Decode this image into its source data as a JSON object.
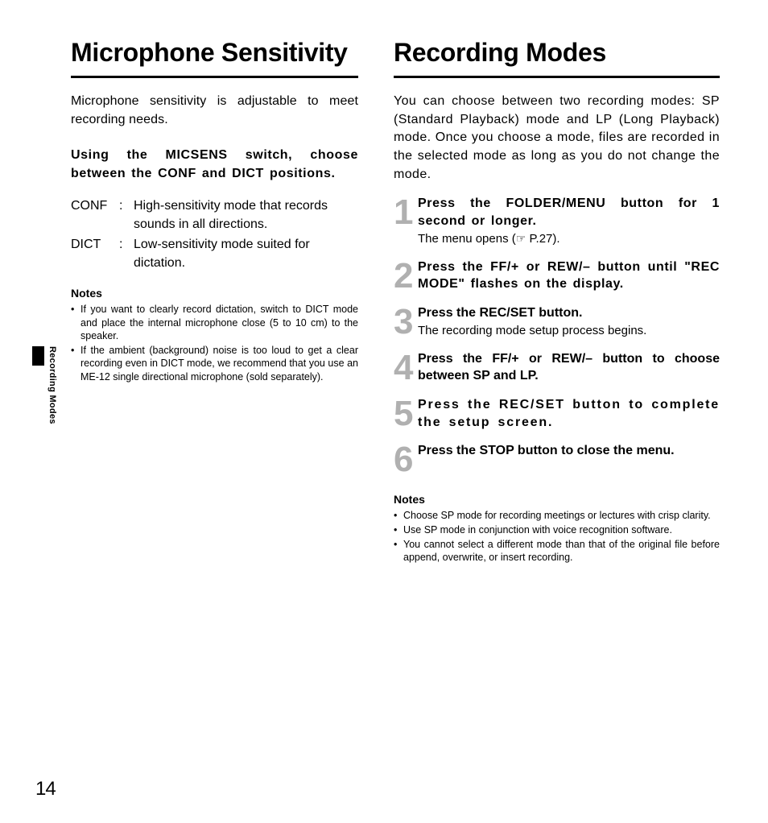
{
  "page_number": "14",
  "side_tab_label": "Recording Modes",
  "left": {
    "heading": "Microphone Sensitivity",
    "intro": "Microphone sensitivity is adjustable to meet recording needs.",
    "subheading": "Using the MICSENS switch, choose between the CONF and DICT positions.",
    "defs": [
      {
        "term": "CONF",
        "desc": "High-sensitivity mode that records sounds in all directions."
      },
      {
        "term": "DICT",
        "desc": "Low-sensitivity mode suited for dictation."
      }
    ],
    "notes_label": "Notes",
    "notes": [
      "If you want to clearly record dictation, switch to DICT mode and place the internal microphone close (5 to 10 cm) to the speaker.",
      "If the ambient (background) noise is too loud to get a clear recording even in DICT mode, we recommend that you use an ME-12 single directional microphone (sold separately)."
    ]
  },
  "right": {
    "heading": "Recording Modes",
    "intro": "You can choose between two recording modes: SP (Standard Playback) mode and LP (Long Playback) mode. Once you choose a mode, files are recorded in the selected mode as long as you do not change the mode.",
    "steps": [
      {
        "num": "1",
        "title": "Press the FOLDER/MENU button for 1 second or longer.",
        "sub_prefix": "The menu opens (",
        "icon": "☞",
        "sub_suffix": " P.27).",
        "spacing": "wide"
      },
      {
        "num": "2",
        "title": "Press the FF/+ or REW/– button until \"REC MODE\" flashes on the display.",
        "spacing": "wide"
      },
      {
        "num": "3",
        "title": "Press the REC/SET button.",
        "sub": "The recording mode setup process begins."
      },
      {
        "num": "4",
        "title": "Press the FF/+ or REW/– button to choose between SP and LP."
      },
      {
        "num": "5",
        "title": "Press the REC/SET button to complete the setup screen.",
        "spacing": "xwide"
      },
      {
        "num": "6",
        "title": "Press the STOP button to close the menu."
      }
    ],
    "notes_label": "Notes",
    "notes": [
      "Choose SP mode for recording meetings or lectures with crisp clarity.",
      "Use SP mode in conjunction with voice recognition software.",
      "You cannot select a different mode than that of the original file before append, overwrite, or insert recording."
    ]
  },
  "colors": {
    "text": "#000000",
    "background": "#ffffff",
    "step_number": "#b0b0b0",
    "rule": "#000000"
  },
  "typography": {
    "heading_size_pt": 32,
    "body_size_pt": 16,
    "notes_size_pt": 12.5,
    "step_num_size_pt": 44,
    "page_num_size_pt": 24
  }
}
